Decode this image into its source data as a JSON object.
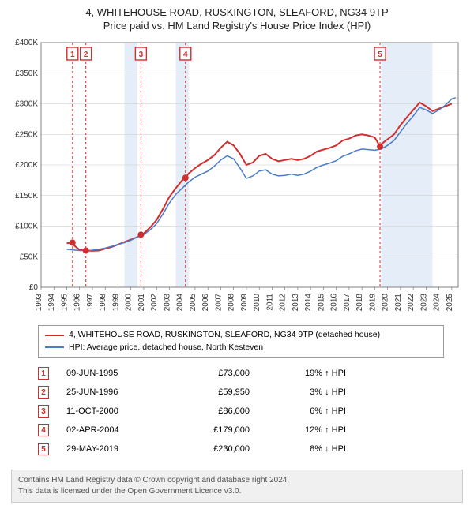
{
  "title": {
    "main": "4, WHITEHOUSE ROAD, RUSKINGTON, SLEAFORD, NG34 9TP",
    "sub": "Price paid vs. HM Land Registry's House Price Index (HPI)"
  },
  "chart": {
    "type": "line",
    "background_color": "#ffffff",
    "plot_border_color": "#808080",
    "grid_color": "#c8c8c8",
    "ylim": [
      0,
      400000
    ],
    "ytick_step": 50000,
    "yticks": [
      "£0",
      "£50K",
      "£100K",
      "£150K",
      "£200K",
      "£250K",
      "£300K",
      "£350K",
      "£400K"
    ],
    "ytick_fontsize": 10,
    "xlim": [
      1993,
      2025.5
    ],
    "xticks": [
      "1993",
      "1994",
      "1995",
      "1996",
      "1997",
      "1998",
      "1999",
      "2000",
      "2001",
      "2002",
      "2003",
      "2004",
      "2005",
      "2006",
      "2007",
      "2008",
      "2009",
      "2010",
      "2011",
      "2012",
      "2013",
      "2014",
      "2015",
      "2016",
      "2017",
      "2018",
      "2019",
      "2020",
      "2021",
      "2022",
      "2023",
      "2024",
      "2025"
    ],
    "xtick_fontsize": 10,
    "series": [
      {
        "name": "property",
        "color": "#d22d2d",
        "line_width": 2,
        "data": [
          [
            1995.0,
            72000
          ],
          [
            1995.45,
            73000
          ],
          [
            1995.6,
            68000
          ],
          [
            1996.0,
            61000
          ],
          [
            1996.49,
            59950
          ],
          [
            1997.0,
            59500
          ],
          [
            1997.5,
            60000
          ],
          [
            1998.0,
            63000
          ],
          [
            1998.5,
            66000
          ],
          [
            1999.0,
            70000
          ],
          [
            1999.5,
            74000
          ],
          [
            2000.0,
            78000
          ],
          [
            2000.5,
            82000
          ],
          [
            2000.78,
            86000
          ],
          [
            2001.0,
            88000
          ],
          [
            2001.5,
            98000
          ],
          [
            2002.0,
            110000
          ],
          [
            2002.5,
            128000
          ],
          [
            2003.0,
            148000
          ],
          [
            2003.5,
            162000
          ],
          [
            2004.0,
            175000
          ],
          [
            2004.25,
            179000
          ],
          [
            2004.5,
            186000
          ],
          [
            2005.0,
            195000
          ],
          [
            2005.5,
            202000
          ],
          [
            2006.0,
            208000
          ],
          [
            2006.5,
            216000
          ],
          [
            2007.0,
            228000
          ],
          [
            2007.5,
            238000
          ],
          [
            2008.0,
            232000
          ],
          [
            2008.5,
            218000
          ],
          [
            2009.0,
            200000
          ],
          [
            2009.5,
            204000
          ],
          [
            2010.0,
            215000
          ],
          [
            2010.5,
            218000
          ],
          [
            2011.0,
            210000
          ],
          [
            2011.5,
            206000
          ],
          [
            2012.0,
            208000
          ],
          [
            2012.5,
            210000
          ],
          [
            2013.0,
            208000
          ],
          [
            2013.5,
            210000
          ],
          [
            2014.0,
            215000
          ],
          [
            2014.5,
            222000
          ],
          [
            2015.0,
            225000
          ],
          [
            2015.5,
            228000
          ],
          [
            2016.0,
            232000
          ],
          [
            2016.5,
            240000
          ],
          [
            2017.0,
            243000
          ],
          [
            2017.5,
            248000
          ],
          [
            2018.0,
            250000
          ],
          [
            2018.5,
            248000
          ],
          [
            2019.0,
            245000
          ],
          [
            2019.41,
            230000
          ],
          [
            2019.5,
            234000
          ],
          [
            2020.0,
            242000
          ],
          [
            2020.5,
            250000
          ],
          [
            2021.0,
            265000
          ],
          [
            2021.5,
            278000
          ],
          [
            2022.0,
            290000
          ],
          [
            2022.5,
            302000
          ],
          [
            2023.0,
            296000
          ],
          [
            2023.5,
            288000
          ],
          [
            2024.0,
            292000
          ],
          [
            2024.5,
            296000
          ],
          [
            2025.0,
            300000
          ]
        ]
      },
      {
        "name": "hpi",
        "color": "#4a7bc8",
        "line_width": 1.5,
        "data": [
          [
            1995.0,
            62000
          ],
          [
            1995.5,
            61000
          ],
          [
            1996.0,
            60000
          ],
          [
            1996.5,
            60000
          ],
          [
            1997.0,
            60500
          ],
          [
            1997.5,
            62000
          ],
          [
            1998.0,
            64000
          ],
          [
            1998.5,
            67000
          ],
          [
            1999.0,
            70000
          ],
          [
            1999.5,
            73000
          ],
          [
            2000.0,
            77000
          ],
          [
            2000.5,
            82000
          ],
          [
            2001.0,
            86000
          ],
          [
            2001.5,
            94000
          ],
          [
            2002.0,
            104000
          ],
          [
            2002.5,
            120000
          ],
          [
            2003.0,
            138000
          ],
          [
            2003.5,
            152000
          ],
          [
            2004.0,
            162000
          ],
          [
            2004.5,
            172000
          ],
          [
            2005.0,
            180000
          ],
          [
            2005.5,
            185000
          ],
          [
            2006.0,
            190000
          ],
          [
            2006.5,
            198000
          ],
          [
            2007.0,
            208000
          ],
          [
            2007.5,
            215000
          ],
          [
            2008.0,
            210000
          ],
          [
            2008.5,
            195000
          ],
          [
            2009.0,
            178000
          ],
          [
            2009.5,
            182000
          ],
          [
            2010.0,
            190000
          ],
          [
            2010.5,
            192000
          ],
          [
            2011.0,
            185000
          ],
          [
            2011.5,
            182000
          ],
          [
            2012.0,
            183000
          ],
          [
            2012.5,
            185000
          ],
          [
            2013.0,
            183000
          ],
          [
            2013.5,
            185000
          ],
          [
            2014.0,
            190000
          ],
          [
            2014.5,
            196000
          ],
          [
            2015.0,
            200000
          ],
          [
            2015.5,
            203000
          ],
          [
            2016.0,
            207000
          ],
          [
            2016.5,
            214000
          ],
          [
            2017.0,
            218000
          ],
          [
            2017.5,
            223000
          ],
          [
            2018.0,
            226000
          ],
          [
            2018.5,
            225000
          ],
          [
            2019.0,
            224000
          ],
          [
            2019.5,
            226000
          ],
          [
            2020.0,
            232000
          ],
          [
            2020.5,
            240000
          ],
          [
            2021.0,
            254000
          ],
          [
            2021.5,
            268000
          ],
          [
            2022.0,
            280000
          ],
          [
            2022.5,
            294000
          ],
          [
            2023.0,
            290000
          ],
          [
            2023.5,
            284000
          ],
          [
            2024.0,
            290000
          ],
          [
            2024.5,
            298000
          ],
          [
            2025.0,
            308000
          ],
          [
            2025.3,
            310000
          ]
        ]
      }
    ],
    "sale_points": {
      "color": "#d22d2d",
      "marker_size": 4,
      "points": [
        {
          "n": 1,
          "x": 1995.45,
          "y": 73000
        },
        {
          "n": 2,
          "x": 1996.49,
          "y": 59950
        },
        {
          "n": 3,
          "x": 2000.78,
          "y": 86000
        },
        {
          "n": 4,
          "x": 2004.25,
          "y": 179000
        },
        {
          "n": 5,
          "x": 2019.41,
          "y": 230000
        }
      ]
    },
    "vlines": {
      "color": "#d22d2d",
      "dash": "3,3",
      "width": 1
    },
    "shade_bands": {
      "color": "#d3e2f4",
      "opacity": 0.6,
      "ranges": [
        [
          1999.5,
          2000.5
        ],
        [
          2003.5,
          2004.5
        ],
        [
          2019.5,
          2023.5
        ]
      ]
    }
  },
  "legend": {
    "items": [
      {
        "color": "#d22d2d",
        "label": "4, WHITEHOUSE ROAD, RUSKINGTON, SLEAFORD, NG34 9TP (detached house)"
      },
      {
        "color": "#4a7bc8",
        "label": "HPI: Average price, detached house, North Kesteven"
      }
    ]
  },
  "sales": [
    {
      "n": "1",
      "date": "09-JUN-1995",
      "price": "£73,000",
      "diff": "19% ↑ HPI"
    },
    {
      "n": "2",
      "date": "25-JUN-1996",
      "price": "£59,950",
      "diff": "3% ↓ HPI"
    },
    {
      "n": "3",
      "date": "11-OCT-2000",
      "price": "£86,000",
      "diff": "6% ↑ HPI"
    },
    {
      "n": "4",
      "date": "02-APR-2004",
      "price": "£179,000",
      "diff": "12% ↑ HPI"
    },
    {
      "n": "5",
      "date": "29-MAY-2019",
      "price": "£230,000",
      "diff": "8% ↓ HPI"
    }
  ],
  "marker_color": "#d22d2d",
  "footer": {
    "line1": "Contains HM Land Registry data © Crown copyright and database right 2024.",
    "line2": "This data is licensed under the Open Government Licence v3.0."
  }
}
